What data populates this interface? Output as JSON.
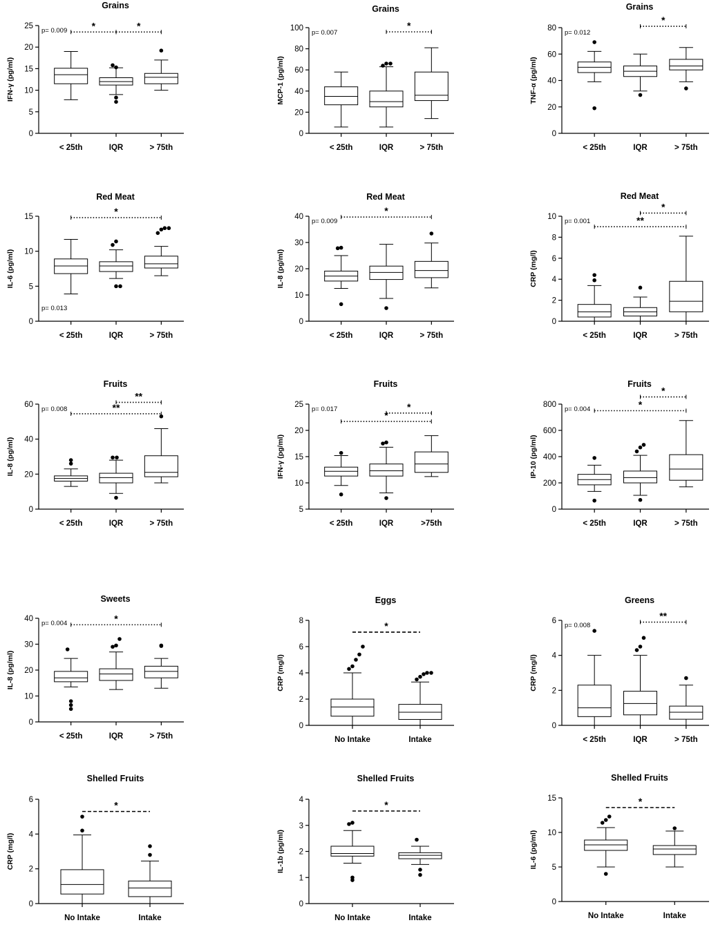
{
  "figure_title": "",
  "chart_data": [
    {
      "type": "box",
      "title": "Grains",
      "ylabel": "IFN-γ (pg/ml)",
      "ylim": [
        0,
        25
      ],
      "yticks": [
        0,
        5,
        10,
        15,
        20,
        25
      ],
      "categories": [
        "< 25th",
        "IQR",
        "> 75th"
      ],
      "boxes": [
        {
          "min": 7.8,
          "q1": 11.5,
          "median": 13.6,
          "q3": 15.1,
          "max": 19,
          "outliers": []
        },
        {
          "min": 9.0,
          "q1": 11.2,
          "median": 12.0,
          "q3": 12.9,
          "max": 15.2,
          "outliers": [
            15.8,
            15.3,
            8.3,
            7.3
          ]
        },
        {
          "min": 10.0,
          "q1": 11.5,
          "median": 13.0,
          "q3": 13.9,
          "max": 17.0,
          "outliers": [
            19.2
          ]
        }
      ],
      "pvalue": "p= 0.009",
      "comparisons": [
        {
          "from": 0,
          "to": 1,
          "label": "*",
          "y": 23.5,
          "style": "dotted"
        },
        {
          "from": 1,
          "to": 2,
          "label": "*",
          "y": 23.5,
          "style": "dotted"
        }
      ]
    },
    {
      "type": "box",
      "title": "Grains",
      "ylabel": "MCP-1 (pg/ml)",
      "ylim": [
        0,
        100
      ],
      "yticks": [
        0,
        20,
        40,
        60,
        80,
        100
      ],
      "categories": [
        "< 25th",
        "IQR",
        "> 75th"
      ],
      "boxes": [
        {
          "min": 6,
          "q1": 27,
          "median": 35,
          "q3": 44,
          "max": 58,
          "outliers": []
        },
        {
          "min": 6,
          "q1": 25,
          "median": 30,
          "q3": 40,
          "max": 63,
          "outliers": [
            64,
            66,
            66
          ]
        },
        {
          "min": 14,
          "q1": 31,
          "median": 36,
          "q3": 58,
          "max": 81,
          "outliers": []
        }
      ],
      "pvalue": "p= 0.007",
      "comparisons": [
        {
          "from": 1,
          "to": 2,
          "label": "*",
          "y": 96,
          "style": "dotted"
        }
      ]
    },
    {
      "type": "box",
      "title": "Grains",
      "ylabel": "TNF-α (pg/ml)",
      "ylim": [
        0,
        80
      ],
      "yticks": [
        0,
        20,
        40,
        60,
        80
      ],
      "categories": [
        "< 25th",
        "IQR",
        "> 75th"
      ],
      "boxes": [
        {
          "min": 39,
          "q1": 46,
          "median": 50,
          "q3": 54,
          "max": 62,
          "outliers": [
            69,
            19
          ]
        },
        {
          "min": 32,
          "q1": 43,
          "median": 47,
          "q3": 51,
          "max": 60,
          "outliers": [
            29
          ]
        },
        {
          "min": 39,
          "q1": 48,
          "median": 51,
          "q3": 56,
          "max": 65,
          "outliers": [
            34
          ]
        }
      ],
      "pvalue": "p= 0.012",
      "comparisons": [
        {
          "from": 1,
          "to": 2,
          "label": "*",
          "y": 81,
          "style": "dotted"
        }
      ]
    },
    {
      "type": "box",
      "title": "Red Meat",
      "ylabel": "IL-6 (pg/ml)",
      "ylim": [
        0,
        15
      ],
      "yticks": [
        0,
        5,
        10,
        15
      ],
      "categories": [
        "< 25th",
        "IQR",
        "> 75th"
      ],
      "boxes": [
        {
          "min": 3.9,
          "q1": 6.8,
          "median": 7.9,
          "q3": 8.9,
          "max": 11.7,
          "outliers": []
        },
        {
          "min": 6.1,
          "q1": 7.1,
          "median": 7.9,
          "q3": 8.5,
          "max": 10.2,
          "outliers": [
            10.9,
            11.4,
            5.0,
            5.0
          ]
        },
        {
          "min": 6.5,
          "q1": 7.6,
          "median": 8.2,
          "q3": 9.3,
          "max": 10.7,
          "outliers": [
            12.6,
            13.1,
            13.3,
            13.3
          ]
        }
      ],
      "pvalue": "p= 0.013",
      "comparisons": [
        {
          "from": 0,
          "to": 2,
          "label": "*",
          "y": 14.8,
          "style": "dotted"
        }
      ]
    },
    {
      "type": "box",
      "title": "Red Meat",
      "ylabel": "IL-8 (pg/ml)",
      "ylim": [
        0,
        40
      ],
      "yticks": [
        0,
        10,
        20,
        30,
        40
      ],
      "categories": [
        "< 25th",
        "IQR",
        "> 75th"
      ],
      "boxes": [
        {
          "min": 12.5,
          "q1": 15.3,
          "median": 17.2,
          "q3": 19.1,
          "max": 25,
          "outliers": [
            27.8,
            28,
            6.5
          ]
        },
        {
          "min": 8.7,
          "q1": 15.9,
          "median": 18.6,
          "q3": 21,
          "max": 29.3,
          "outliers": [
            5
          ]
        },
        {
          "min": 12.7,
          "q1": 16.6,
          "median": 19.3,
          "q3": 22.8,
          "max": 29.8,
          "outliers": [
            33.4
          ]
        }
      ],
      "pvalue": "p= 0.009",
      "comparisons": [
        {
          "from": 0,
          "to": 2,
          "label": "*",
          "y": 39.7,
          "style": "dotted"
        }
      ]
    },
    {
      "type": "box",
      "title": "Red Meat",
      "ylabel": "CRP (mg/l)",
      "ylim": [
        0,
        10
      ],
      "yticks": [
        0,
        2,
        4,
        6,
        8,
        10
      ],
      "categories": [
        "< 25th",
        "IQR",
        "> 75th"
      ],
      "boxes": [
        {
          "min": 0,
          "q1": 0.4,
          "median": 0.9,
          "q3": 1.6,
          "max": 3.4,
          "outliers": [
            3.9,
            4.4
          ]
        },
        {
          "min": 0,
          "q1": 0.5,
          "median": 0.9,
          "q3": 1.3,
          "max": 2.3,
          "outliers": [
            3.2
          ]
        },
        {
          "min": 0,
          "q1": 0.9,
          "median": 1.9,
          "q3": 3.8,
          "max": 8.1,
          "outliers": []
        }
      ],
      "pvalue": "p= 0.001",
      "comparisons": [
        {
          "from": 1,
          "to": 2,
          "label": "*",
          "y": 10.3,
          "style": "dotted"
        },
        {
          "from": 0,
          "to": 2,
          "label": "**",
          "y": 9.0,
          "style": "dotted"
        }
      ]
    },
    {
      "type": "box",
      "title": "Fruits",
      "ylabel": "IL-8 (pg/ml)",
      "ylim": [
        0,
        60
      ],
      "yticks": [
        0,
        20,
        40,
        60
      ],
      "categories": [
        "< 25th",
        "IQR",
        "> 75th"
      ],
      "boxes": [
        {
          "min": 13,
          "q1": 16,
          "median": 17.5,
          "q3": 19,
          "max": 23,
          "outliers": [
            26,
            28
          ]
        },
        {
          "min": 9,
          "q1": 15,
          "median": 18,
          "q3": 20.5,
          "max": 28,
          "outliers": [
            29.5,
            29.5,
            6.5
          ]
        },
        {
          "min": 15,
          "q1": 18.5,
          "median": 21,
          "q3": 30.5,
          "max": 46,
          "outliers": [
            53
          ]
        }
      ],
      "pvalue": "p= 0.008",
      "comparisons": [
        {
          "from": 1,
          "to": 2,
          "label": "**",
          "y": 61,
          "style": "dotted"
        },
        {
          "from": 0,
          "to": 2,
          "label": "**",
          "y": 54.5,
          "style": "dotted"
        }
      ]
    },
    {
      "type": "box",
      "title": "Fruits",
      "ylabel": "IFN-γ (pg/ml)",
      "ylim": [
        5,
        25
      ],
      "yticks": [
        5,
        10,
        15,
        20,
        25
      ],
      "categories": [
        "< 25th",
        "IQR",
        ">75th"
      ],
      "boxes": [
        {
          "min": 9.5,
          "q1": 11.3,
          "median": 12.2,
          "q3": 13.0,
          "max": 15.2,
          "outliers": [
            15.7,
            7.8
          ]
        },
        {
          "min": 8.1,
          "q1": 11.3,
          "median": 12.3,
          "q3": 13.6,
          "max": 16.8,
          "outliers": [
            17.5,
            17.7,
            7.1
          ]
        },
        {
          "min": 11.2,
          "q1": 12.0,
          "median": 13.6,
          "q3": 15.9,
          "max": 19.0,
          "outliers": []
        }
      ],
      "pvalue": "p= 0.017",
      "comparisons": [
        {
          "from": 1,
          "to": 2,
          "label": "*",
          "y": 23.3,
          "style": "dotted"
        },
        {
          "from": 0,
          "to": 2,
          "label": "*",
          "y": 21.7,
          "style": "dotted"
        }
      ]
    },
    {
      "type": "box",
      "title": "Fruits",
      "ylabel": "IP-10 (pg/ml)",
      "ylim": [
        0,
        800
      ],
      "yticks": [
        0,
        200,
        400,
        600,
        800
      ],
      "categories": [
        "< 25th",
        "IQR",
        "> 75th"
      ],
      "boxes": [
        {
          "min": 135,
          "q1": 185,
          "median": 225,
          "q3": 265,
          "max": 335,
          "outliers": [
            390,
            65
          ]
        },
        {
          "min": 105,
          "q1": 200,
          "median": 240,
          "q3": 290,
          "max": 410,
          "outliers": [
            440,
            470,
            490,
            70
          ]
        },
        {
          "min": 170,
          "q1": 220,
          "median": 305,
          "q3": 415,
          "max": 675,
          "outliers": []
        }
      ],
      "pvalue": "p= 0.004",
      "comparisons": [
        {
          "from": 1,
          "to": 2,
          "label": "*",
          "y": 855,
          "style": "dotted"
        },
        {
          "from": 0,
          "to": 2,
          "label": "*",
          "y": 750,
          "style": "dotted"
        }
      ]
    },
    {
      "type": "box",
      "title": "Sweets",
      "ylabel": "IL-8 (pg/ml)",
      "ylim": [
        0,
        40
      ],
      "yticks": [
        0,
        10,
        20,
        30,
        40
      ],
      "categories": [
        "< 25th",
        "IQR",
        "> 75th"
      ],
      "boxes": [
        {
          "min": 13.5,
          "q1": 15.5,
          "median": 17,
          "q3": 19.5,
          "max": 24.5,
          "outliers": [
            28,
            8,
            6.5,
            5
          ]
        },
        {
          "min": 12.5,
          "q1": 16,
          "median": 18.5,
          "q3": 20.5,
          "max": 27,
          "outliers": [
            29,
            29.5,
            32
          ]
        },
        {
          "min": 13,
          "q1": 17,
          "median": 19.5,
          "q3": 21.5,
          "max": 24.5,
          "outliers": [
            29.3,
            29.5
          ]
        }
      ],
      "pvalue": "p= 0.004",
      "comparisons": [
        {
          "from": 0,
          "to": 2,
          "label": "*",
          "y": 37.5,
          "style": "dotted"
        }
      ]
    },
    {
      "type": "box",
      "title": "Eggs",
      "ylabel": "CRP (mg/l)",
      "ylim": [
        0,
        8
      ],
      "yticks": [
        0,
        2,
        4,
        6,
        8
      ],
      "categories": [
        "No Intake",
        "Intake"
      ],
      "boxes": [
        {
          "min": 0,
          "q1": 0.7,
          "median": 1.4,
          "q3": 2.0,
          "max": 4.0,
          "outliers": [
            4.3,
            4.5,
            5.0,
            5.4,
            6.0
          ]
        },
        {
          "min": 0,
          "q1": 0.45,
          "median": 1.0,
          "q3": 1.6,
          "max": 3.3,
          "outliers": [
            3.5,
            3.7,
            3.9,
            4.0,
            4.0
          ]
        }
      ],
      "pvalue": "",
      "comparisons": [
        {
          "from": 0,
          "to": 1,
          "label": "*",
          "y": 7.1,
          "style": "dashed"
        }
      ]
    },
    {
      "type": "box",
      "title": "Greens",
      "ylabel": "CRP (mg/l)",
      "ylim": [
        0,
        6
      ],
      "yticks": [
        0,
        2,
        4,
        6
      ],
      "categories": [
        "< 25th",
        "IQR",
        "> 75th"
      ],
      "boxes": [
        {
          "min": 0,
          "q1": 0.5,
          "median": 1.0,
          "q3": 2.3,
          "max": 4.0,
          "outliers": [
            5.4
          ]
        },
        {
          "min": 0,
          "q1": 0.6,
          "median": 1.25,
          "q3": 1.95,
          "max": 4.0,
          "outliers": [
            4.3,
            4.5,
            5.0
          ]
        },
        {
          "min": 0,
          "q1": 0.35,
          "median": 0.75,
          "q3": 1.1,
          "max": 2.3,
          "outliers": [
            2.7
          ]
        }
      ],
      "pvalue": "p= 0.008",
      "comparisons": [
        {
          "from": 1,
          "to": 2,
          "label": "**",
          "y": 5.9,
          "style": "dotted"
        }
      ]
    },
    {
      "type": "box",
      "title": "Shelled Fruits",
      "ylabel": "CRP (mg/l)",
      "ylim": [
        0,
        6
      ],
      "yticks": [
        0,
        2,
        4,
        6
      ],
      "categories": [
        "No Intake",
        "Intake"
      ],
      "boxes": [
        {
          "min": 0,
          "q1": 0.55,
          "median": 1.1,
          "q3": 1.95,
          "max": 3.95,
          "outliers": [
            4.2,
            5.0
          ]
        },
        {
          "min": 0,
          "q1": 0.4,
          "median": 0.9,
          "q3": 1.3,
          "max": 2.45,
          "outliers": [
            2.8,
            3.3
          ]
        }
      ],
      "pvalue": "",
      "comparisons": [
        {
          "from": 0,
          "to": 1,
          "label": "*",
          "y": 5.3,
          "style": "dashed"
        }
      ]
    },
    {
      "type": "box",
      "title": "Shelled Fruits",
      "ylabel": "IL-1b (pg/ml)",
      "ylim": [
        0,
        4
      ],
      "yticks": [
        0,
        1,
        2,
        3,
        4
      ],
      "categories": [
        "No Intake",
        "Intake"
      ],
      "boxes": [
        {
          "min": 1.55,
          "q1": 1.82,
          "median": 1.92,
          "q3": 2.2,
          "max": 2.8,
          "outliers": [
            3.05,
            3.1,
            1.0,
            0.9
          ]
        },
        {
          "min": 1.5,
          "q1": 1.72,
          "median": 1.85,
          "q3": 1.95,
          "max": 2.2,
          "outliers": [
            2.45,
            1.3,
            1.1
          ]
        }
      ],
      "pvalue": "",
      "comparisons": [
        {
          "from": 0,
          "to": 1,
          "label": "*",
          "y": 3.55,
          "style": "dashed"
        }
      ]
    },
    {
      "type": "box",
      "title": "Shelled Fruits",
      "ylabel": "IL-6 (pg/ml)",
      "ylim": [
        0,
        15
      ],
      "yticks": [
        0,
        5,
        10,
        15
      ],
      "categories": [
        "No Intake",
        "Intake"
      ],
      "boxes": [
        {
          "min": 5,
          "q1": 7.4,
          "median": 8.2,
          "q3": 8.9,
          "max": 10.7,
          "outliers": [
            11.4,
            11.8,
            12.3,
            4
          ]
        },
        {
          "min": 5,
          "q1": 6.8,
          "median": 7.6,
          "q3": 8.1,
          "max": 10.2,
          "outliers": [
            10.6
          ]
        }
      ],
      "pvalue": "",
      "comparisons": [
        {
          "from": 0,
          "to": 1,
          "label": "*",
          "y": 13.6,
          "style": "dashed"
        }
      ]
    }
  ]
}
